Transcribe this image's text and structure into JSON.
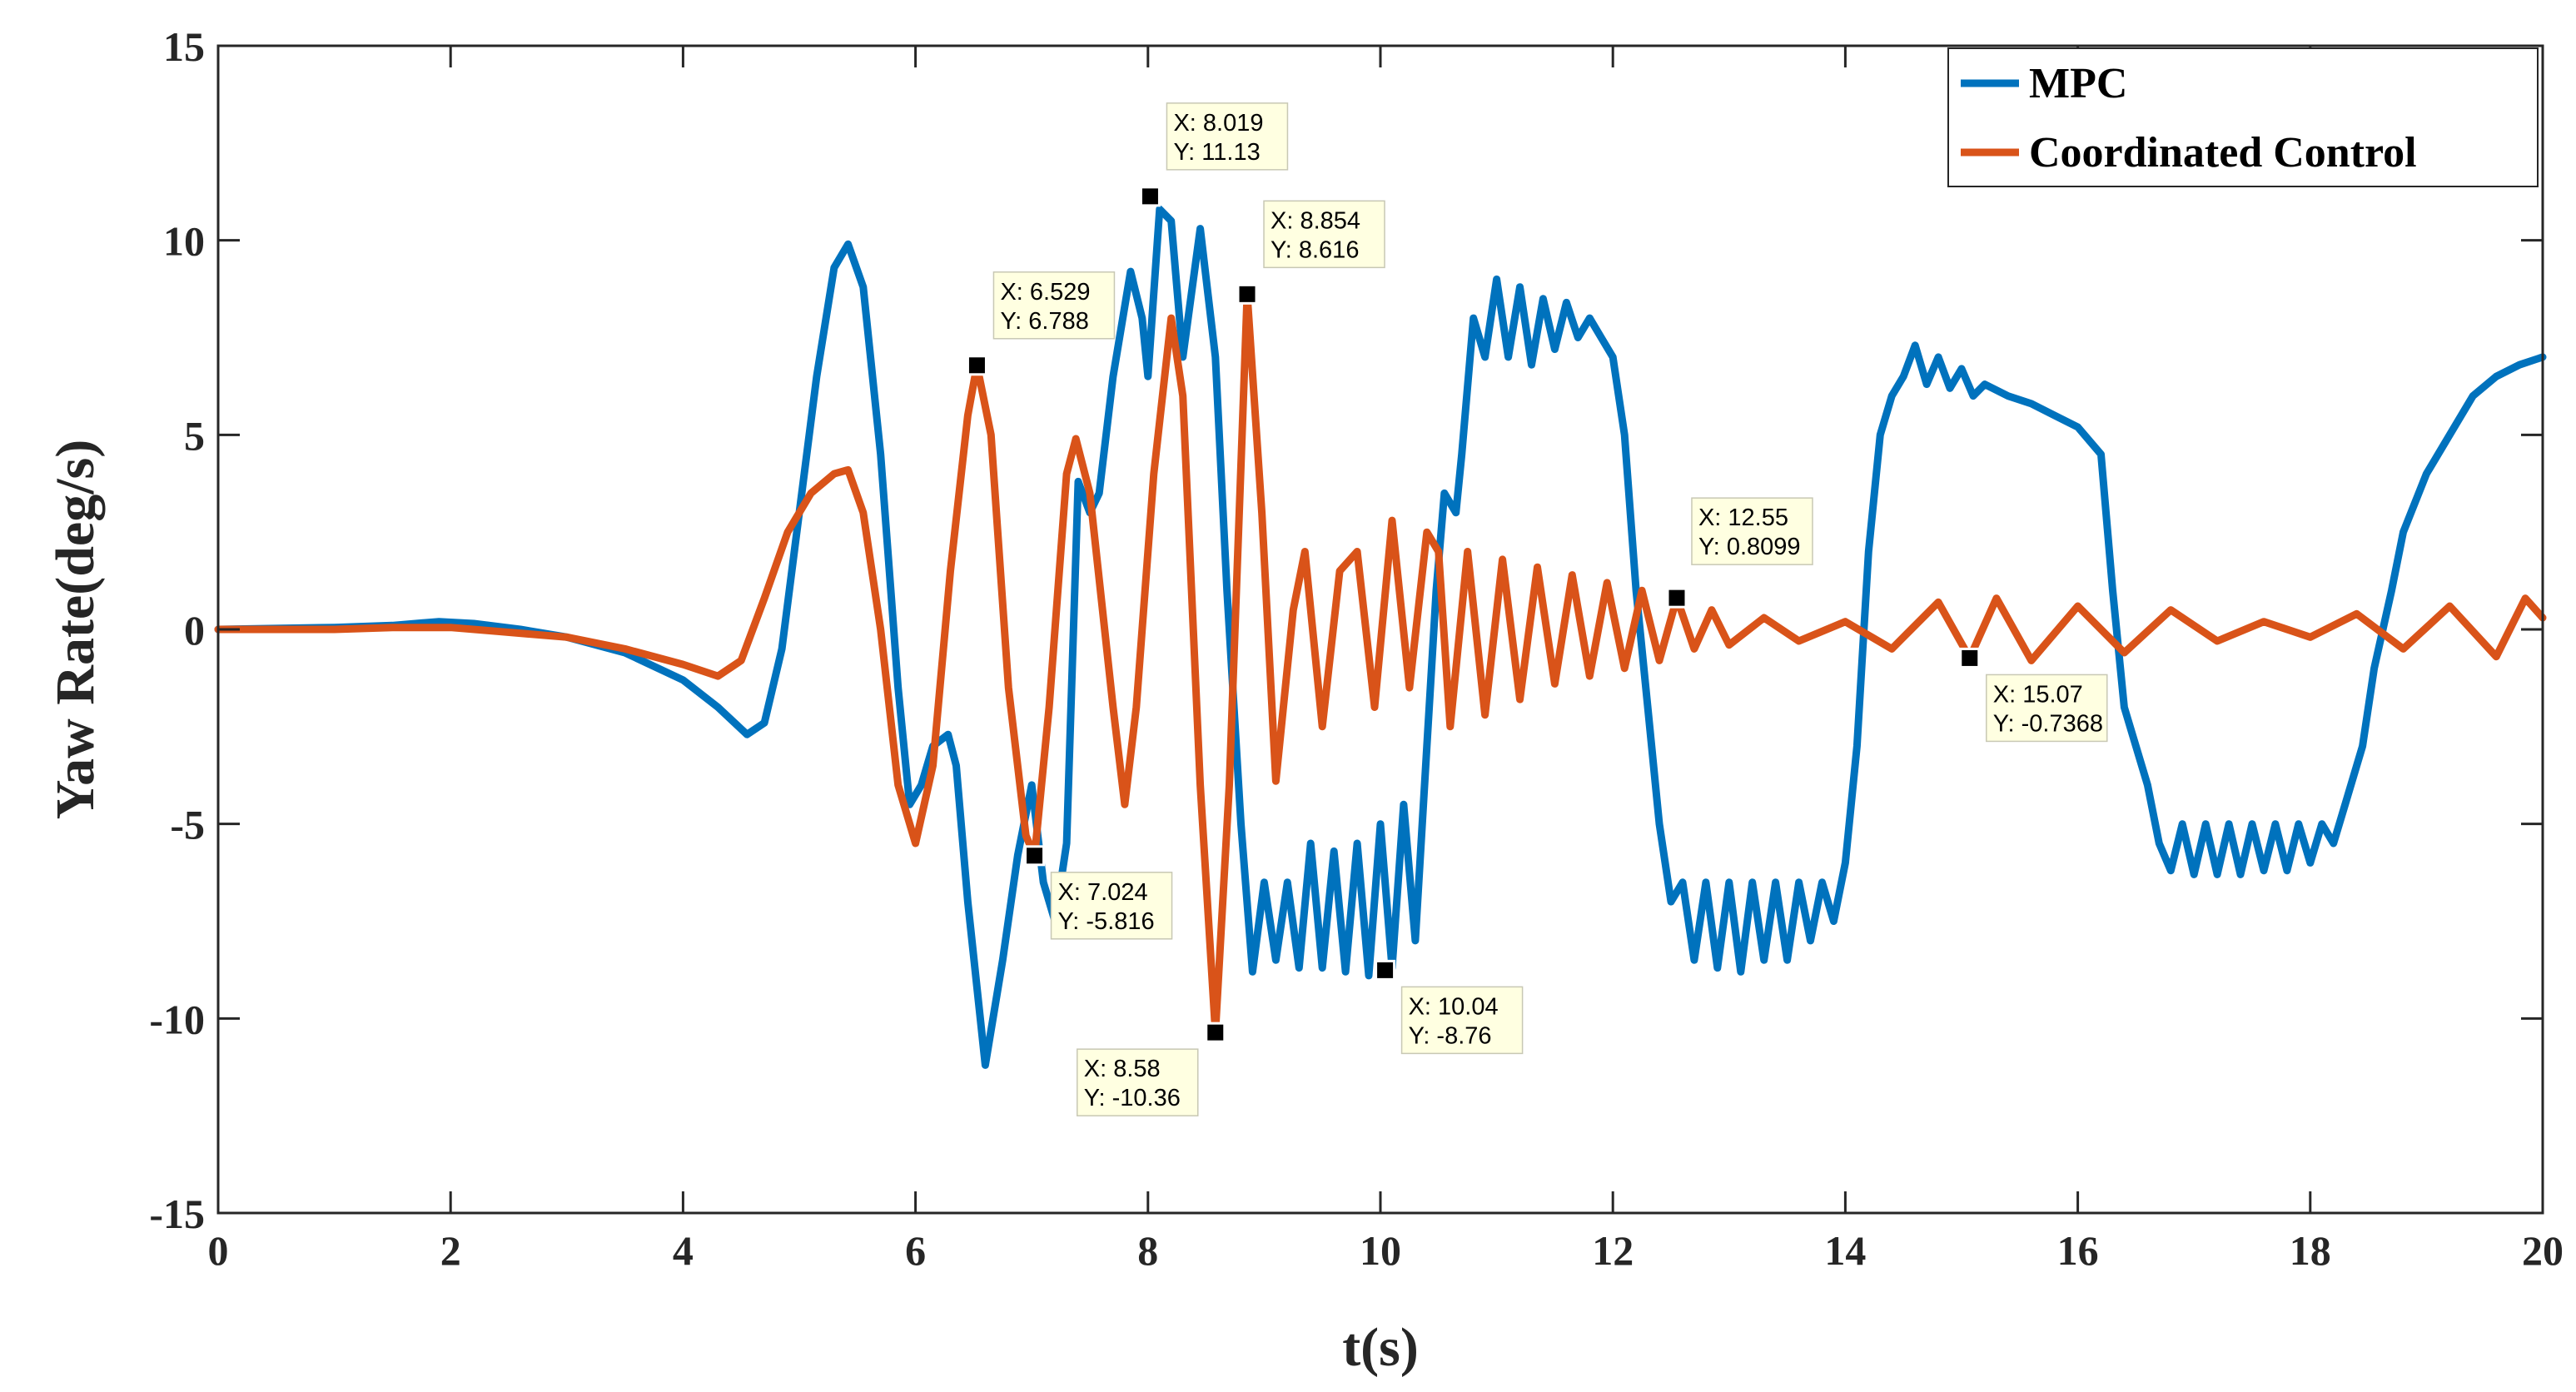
{
  "chart_data": {
    "type": "line",
    "title": "",
    "xlabel": "t(s)",
    "ylabel": "Yaw Rate(deg/s)",
    "xlim": [
      0,
      20
    ],
    "ylim": [
      -15,
      15
    ],
    "xticks": [
      0,
      2,
      4,
      6,
      8,
      10,
      12,
      14,
      16,
      18,
      20
    ],
    "xtick_labels": [
      "0",
      "2",
      "4",
      "6",
      "8",
      "10",
      "12",
      "14",
      "16",
      "18",
      "20"
    ],
    "yticks": [
      -15,
      -10,
      -5,
      0,
      5,
      10,
      15
    ],
    "ytick_labels": [
      "-15",
      "-10",
      "-5",
      "0",
      "5",
      "10",
      "15"
    ],
    "grid": false,
    "legend_position": "top-right",
    "colors": {
      "MPC": "#0072BD",
      "Coordinated Control": "#D95319",
      "datatip_bg": "#FFFFE1"
    },
    "series": [
      {
        "name": "MPC",
        "points": [
          [
            0,
            0
          ],
          [
            1,
            0.05
          ],
          [
            1.5,
            0.1
          ],
          [
            1.9,
            0.2
          ],
          [
            2.2,
            0.15
          ],
          [
            2.6,
            0
          ],
          [
            3,
            -0.2
          ],
          [
            3.5,
            -0.6
          ],
          [
            4,
            -1.3
          ],
          [
            4.3,
            -2.0
          ],
          [
            4.55,
            -2.7
          ],
          [
            4.7,
            -2.4
          ],
          [
            4.85,
            -0.5
          ],
          [
            5.0,
            3.0
          ],
          [
            5.15,
            6.5
          ],
          [
            5.3,
            9.3
          ],
          [
            5.42,
            9.9
          ],
          [
            5.55,
            8.8
          ],
          [
            5.7,
            4.5
          ],
          [
            5.85,
            -1.5
          ],
          [
            5.95,
            -4.5
          ],
          [
            6.05,
            -4.0
          ],
          [
            6.15,
            -3.0
          ],
          [
            6.28,
            -2.7
          ],
          [
            6.35,
            -3.5
          ],
          [
            6.45,
            -7.0
          ],
          [
            6.6,
            -11.2
          ],
          [
            6.75,
            -8.5
          ],
          [
            6.88,
            -5.8
          ],
          [
            7.0,
            -4.0
          ],
          [
            7.1,
            -6.5
          ],
          [
            7.2,
            -7.5
          ],
          [
            7.3,
            -5.5
          ],
          [
            7.4,
            3.8
          ],
          [
            7.5,
            3.0
          ],
          [
            7.58,
            3.5
          ],
          [
            7.7,
            6.5
          ],
          [
            7.85,
            9.2
          ],
          [
            7.95,
            8.0
          ],
          [
            8.0,
            6.5
          ],
          [
            8.1,
            10.8
          ],
          [
            8.2,
            10.5
          ],
          [
            8.3,
            7.0
          ],
          [
            8.45,
            10.3
          ],
          [
            8.58,
            7.0
          ],
          [
            8.68,
            1.0
          ],
          [
            8.8,
            -5.0
          ],
          [
            8.9,
            -8.8
          ],
          [
            9.0,
            -6.5
          ],
          [
            9.1,
            -8.5
          ],
          [
            9.2,
            -6.5
          ],
          [
            9.3,
            -8.7
          ],
          [
            9.4,
            -5.5
          ],
          [
            9.5,
            -8.7
          ],
          [
            9.6,
            -5.7
          ],
          [
            9.7,
            -8.8
          ],
          [
            9.8,
            -5.5
          ],
          [
            9.9,
            -8.9
          ],
          [
            10.0,
            -5.0
          ],
          [
            10.1,
            -8.7
          ],
          [
            10.2,
            -4.5
          ],
          [
            10.3,
            -8.0
          ],
          [
            10.4,
            -3.0
          ],
          [
            10.48,
            1.0
          ],
          [
            10.55,
            3.5
          ],
          [
            10.65,
            3.0
          ],
          [
            10.7,
            4.5
          ],
          [
            10.8,
            8.0
          ],
          [
            10.9,
            7.0
          ],
          [
            11.0,
            9.0
          ],
          [
            11.1,
            7.0
          ],
          [
            11.2,
            8.8
          ],
          [
            11.3,
            6.8
          ],
          [
            11.4,
            8.5
          ],
          [
            11.5,
            7.2
          ],
          [
            11.6,
            8.4
          ],
          [
            11.7,
            7.5
          ],
          [
            11.8,
            8.0
          ],
          [
            11.9,
            7.5
          ],
          [
            12.0,
            7.0
          ],
          [
            12.1,
            5.0
          ],
          [
            12.2,
            1.0
          ],
          [
            12.3,
            -2.0
          ],
          [
            12.4,
            -5.0
          ],
          [
            12.5,
            -7.0
          ],
          [
            12.6,
            -6.5
          ],
          [
            12.7,
            -8.5
          ],
          [
            12.8,
            -6.5
          ],
          [
            12.9,
            -8.7
          ],
          [
            13.0,
            -6.5
          ],
          [
            13.1,
            -8.8
          ],
          [
            13.2,
            -6.5
          ],
          [
            13.3,
            -8.5
          ],
          [
            13.4,
            -6.5
          ],
          [
            13.5,
            -8.5
          ],
          [
            13.6,
            -6.5
          ],
          [
            13.7,
            -8.0
          ],
          [
            13.8,
            -6.5
          ],
          [
            13.9,
            -7.5
          ],
          [
            14.0,
            -6.0
          ],
          [
            14.1,
            -3.0
          ],
          [
            14.2,
            2.0
          ],
          [
            14.3,
            5.0
          ],
          [
            14.4,
            6.0
          ],
          [
            14.5,
            6.5
          ],
          [
            14.6,
            7.3
          ],
          [
            14.7,
            6.3
          ],
          [
            14.8,
            7.0
          ],
          [
            14.9,
            6.2
          ],
          [
            15.0,
            6.7
          ],
          [
            15.1,
            6.0
          ],
          [
            15.2,
            6.3
          ],
          [
            15.4,
            6.0
          ],
          [
            15.6,
            5.8
          ],
          [
            15.8,
            5.5
          ],
          [
            16.0,
            5.2
          ],
          [
            16.2,
            4.5
          ],
          [
            16.3,
            1.0
          ],
          [
            16.4,
            -2.0
          ],
          [
            16.5,
            -3.0
          ],
          [
            16.6,
            -4.0
          ],
          [
            16.7,
            -5.5
          ],
          [
            16.8,
            -6.2
          ],
          [
            16.9,
            -5.0
          ],
          [
            17.0,
            -6.3
          ],
          [
            17.1,
            -5.0
          ],
          [
            17.2,
            -6.3
          ],
          [
            17.3,
            -5.0
          ],
          [
            17.4,
            -6.3
          ],
          [
            17.5,
            -5.0
          ],
          [
            17.6,
            -6.2
          ],
          [
            17.7,
            -5.0
          ],
          [
            17.8,
            -6.2
          ],
          [
            17.9,
            -5.0
          ],
          [
            18.0,
            -6.0
          ],
          [
            18.1,
            -5.0
          ],
          [
            18.2,
            -5.5
          ],
          [
            18.3,
            -4.5
          ],
          [
            18.45,
            -3.0
          ],
          [
            18.55,
            -1.0
          ],
          [
            18.7,
            1.0
          ],
          [
            18.8,
            2.5
          ],
          [
            19.0,
            4.0
          ],
          [
            19.2,
            5.0
          ],
          [
            19.4,
            6.0
          ],
          [
            19.6,
            6.5
          ],
          [
            19.8,
            6.8
          ],
          [
            20.0,
            7.0
          ]
        ]
      },
      {
        "name": "Coordinated Control",
        "points": [
          [
            0,
            0
          ],
          [
            1,
            0
          ],
          [
            1.5,
            0.05
          ],
          [
            2.0,
            0.05
          ],
          [
            2.4,
            -0.05
          ],
          [
            3.0,
            -0.2
          ],
          [
            3.5,
            -0.5
          ],
          [
            4.0,
            -0.9
          ],
          [
            4.3,
            -1.2
          ],
          [
            4.5,
            -0.8
          ],
          [
            4.7,
            0.8
          ],
          [
            4.9,
            2.5
          ],
          [
            5.1,
            3.5
          ],
          [
            5.3,
            4.0
          ],
          [
            5.42,
            4.1
          ],
          [
            5.55,
            3.0
          ],
          [
            5.7,
            0.0
          ],
          [
            5.85,
            -4.0
          ],
          [
            6.0,
            -5.5
          ],
          [
            6.15,
            -3.5
          ],
          [
            6.3,
            1.5
          ],
          [
            6.45,
            5.5
          ],
          [
            6.529,
            6.788
          ],
          [
            6.65,
            5.0
          ],
          [
            6.8,
            -1.5
          ],
          [
            6.95,
            -5.3
          ],
          [
            7.024,
            -5.816
          ],
          [
            7.15,
            -2.0
          ],
          [
            7.3,
            4.0
          ],
          [
            7.38,
            4.9
          ],
          [
            7.5,
            3.5
          ],
          [
            7.7,
            -2.0
          ],
          [
            7.8,
            -4.5
          ],
          [
            7.9,
            -2.0
          ],
          [
            8.05,
            4.0
          ],
          [
            8.2,
            8.0
          ],
          [
            8.3,
            6.0
          ],
          [
            8.45,
            -4.0
          ],
          [
            8.58,
            -10.36
          ],
          [
            8.7,
            -4.0
          ],
          [
            8.854,
            8.616
          ],
          [
            8.98,
            3.0
          ],
          [
            9.1,
            -3.9
          ],
          [
            9.25,
            0.5
          ],
          [
            9.35,
            2.0
          ],
          [
            9.5,
            -2.5
          ],
          [
            9.65,
            1.5
          ],
          [
            9.8,
            2.0
          ],
          [
            9.95,
            -2.0
          ],
          [
            10.1,
            2.8
          ],
          [
            10.25,
            -1.5
          ],
          [
            10.4,
            2.5
          ],
          [
            10.5,
            2.0
          ],
          [
            10.6,
            -2.5
          ],
          [
            10.75,
            2.0
          ],
          [
            10.9,
            -2.2
          ],
          [
            11.05,
            1.8
          ],
          [
            11.2,
            -1.8
          ],
          [
            11.35,
            1.6
          ],
          [
            11.5,
            -1.4
          ],
          [
            11.65,
            1.4
          ],
          [
            11.8,
            -1.2
          ],
          [
            11.95,
            1.2
          ],
          [
            12.1,
            -1.0
          ],
          [
            12.25,
            1.0
          ],
          [
            12.4,
            -0.8
          ],
          [
            12.55,
            0.8099
          ],
          [
            12.7,
            -0.5
          ],
          [
            12.85,
            0.5
          ],
          [
            13.0,
            -0.4
          ],
          [
            13.3,
            0.3
          ],
          [
            13.6,
            -0.3
          ],
          [
            14.0,
            0.2
          ],
          [
            14.4,
            -0.5
          ],
          [
            14.8,
            0.7
          ],
          [
            15.07,
            -0.7368
          ],
          [
            15.3,
            0.8
          ],
          [
            15.6,
            -0.8
          ],
          [
            16.0,
            0.6
          ],
          [
            16.4,
            -0.6
          ],
          [
            16.8,
            0.5
          ],
          [
            17.2,
            -0.3
          ],
          [
            17.6,
            0.2
          ],
          [
            18.0,
            -0.2
          ],
          [
            18.4,
            0.4
          ],
          [
            18.8,
            -0.5
          ],
          [
            19.2,
            0.6
          ],
          [
            19.6,
            -0.7
          ],
          [
            19.85,
            0.8
          ],
          [
            20.0,
            0.3
          ]
        ]
      }
    ],
    "datatips": [
      {
        "x": 8.019,
        "y": 11.13,
        "label_x": "X: 8.019",
        "label_y": "Y: 11.13",
        "anchor": "right"
      },
      {
        "x": 6.529,
        "y": 6.788,
        "label_x": "X: 6.529",
        "label_y": "Y: 6.788",
        "anchor": "right"
      },
      {
        "x": 8.854,
        "y": 8.616,
        "label_x": "X: 8.854",
        "label_y": "Y: 8.616",
        "anchor": "right"
      },
      {
        "x": 7.024,
        "y": -5.816,
        "label_x": "X: 7.024",
        "label_y": "Y: -5.816",
        "anchor": "below-right"
      },
      {
        "x": 8.58,
        "y": -10.36,
        "label_x": "X: 8.58",
        "label_y": "Y: -10.36",
        "anchor": "below-left"
      },
      {
        "x": 10.04,
        "y": -8.76,
        "label_x": "X: 10.04",
        "label_y": "Y: -8.76",
        "anchor": "below-right"
      },
      {
        "x": 12.55,
        "y": 0.8099,
        "label_x": "X: 12.55",
        "label_y": "Y: 0.8099",
        "anchor": "above-right"
      },
      {
        "x": 15.07,
        "y": -0.7368,
        "label_x": "X: 15.07",
        "label_y": "Y: -0.7368",
        "anchor": "below-right"
      }
    ]
  }
}
